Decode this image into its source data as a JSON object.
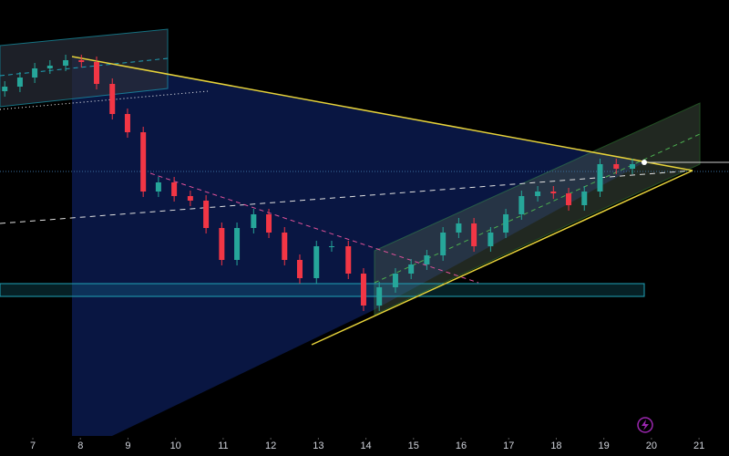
{
  "chart_data": {
    "type": "candlestick",
    "x": [
      6.41,
      6.73,
      7.04,
      7.36,
      7.69,
      8.02,
      8.34,
      8.67,
      8.99,
      9.32,
      9.64,
      9.97,
      10.31,
      10.64,
      10.97,
      11.29,
      11.64,
      11.96,
      12.29,
      12.61,
      12.96,
      13.28,
      13.63,
      13.95,
      14.28,
      14.62,
      14.95,
      15.28,
      15.62,
      15.95,
      16.27,
      16.62,
      16.94,
      17.27,
      17.61,
      17.94,
      18.26,
      18.59,
      18.92,
      19.26,
      19.6
    ],
    "open": [
      380,
      385,
      395,
      405,
      408,
      414,
      412,
      388,
      355,
      335,
      270,
      280,
      265,
      260,
      230,
      195,
      230,
      245,
      225,
      195,
      175,
      210,
      210,
      180,
      145,
      165,
      180,
      190,
      200,
      225,
      235,
      210,
      225,
      245,
      265,
      270,
      268,
      255,
      270,
      300,
      295
    ],
    "high": [
      391,
      401,
      411,
      414,
      420,
      420,
      418,
      394,
      361,
      341,
      286,
      286,
      271,
      266,
      236,
      236,
      251,
      251,
      231,
      201,
      216,
      216,
      216,
      186,
      171,
      186,
      196,
      206,
      231,
      241,
      241,
      231,
      251,
      271,
      276,
      276,
      274,
      276,
      306,
      306,
      306
    ],
    "low": [
      374,
      379,
      389,
      399,
      402,
      406,
      382,
      349,
      329,
      264,
      264,
      259,
      254,
      224,
      189,
      189,
      224,
      219,
      189,
      169,
      169,
      204,
      174,
      139,
      139,
      159,
      174,
      184,
      194,
      219,
      204,
      204,
      219,
      239,
      259,
      262,
      249,
      249,
      264,
      289,
      289
    ],
    "close": [
      385,
      395,
      405,
      408,
      414,
      412,
      388,
      355,
      335,
      270,
      280,
      265,
      260,
      230,
      195,
      230,
      245,
      225,
      195,
      175,
      210,
      210,
      180,
      145,
      165,
      180,
      190,
      200,
      225,
      235,
      210,
      225,
      245,
      265,
      270,
      268,
      255,
      270,
      300,
      295,
      300
    ],
    "up_color": "#26a69a",
    "down_color": "#f23645",
    "xlim": [
      6.31,
      21.63
    ],
    "xticks": [
      7,
      8,
      9,
      10,
      11,
      12,
      13,
      14,
      15,
      16,
      17,
      18,
      19,
      20,
      21
    ],
    "ylim": [
      0,
      480
    ]
  }
}
